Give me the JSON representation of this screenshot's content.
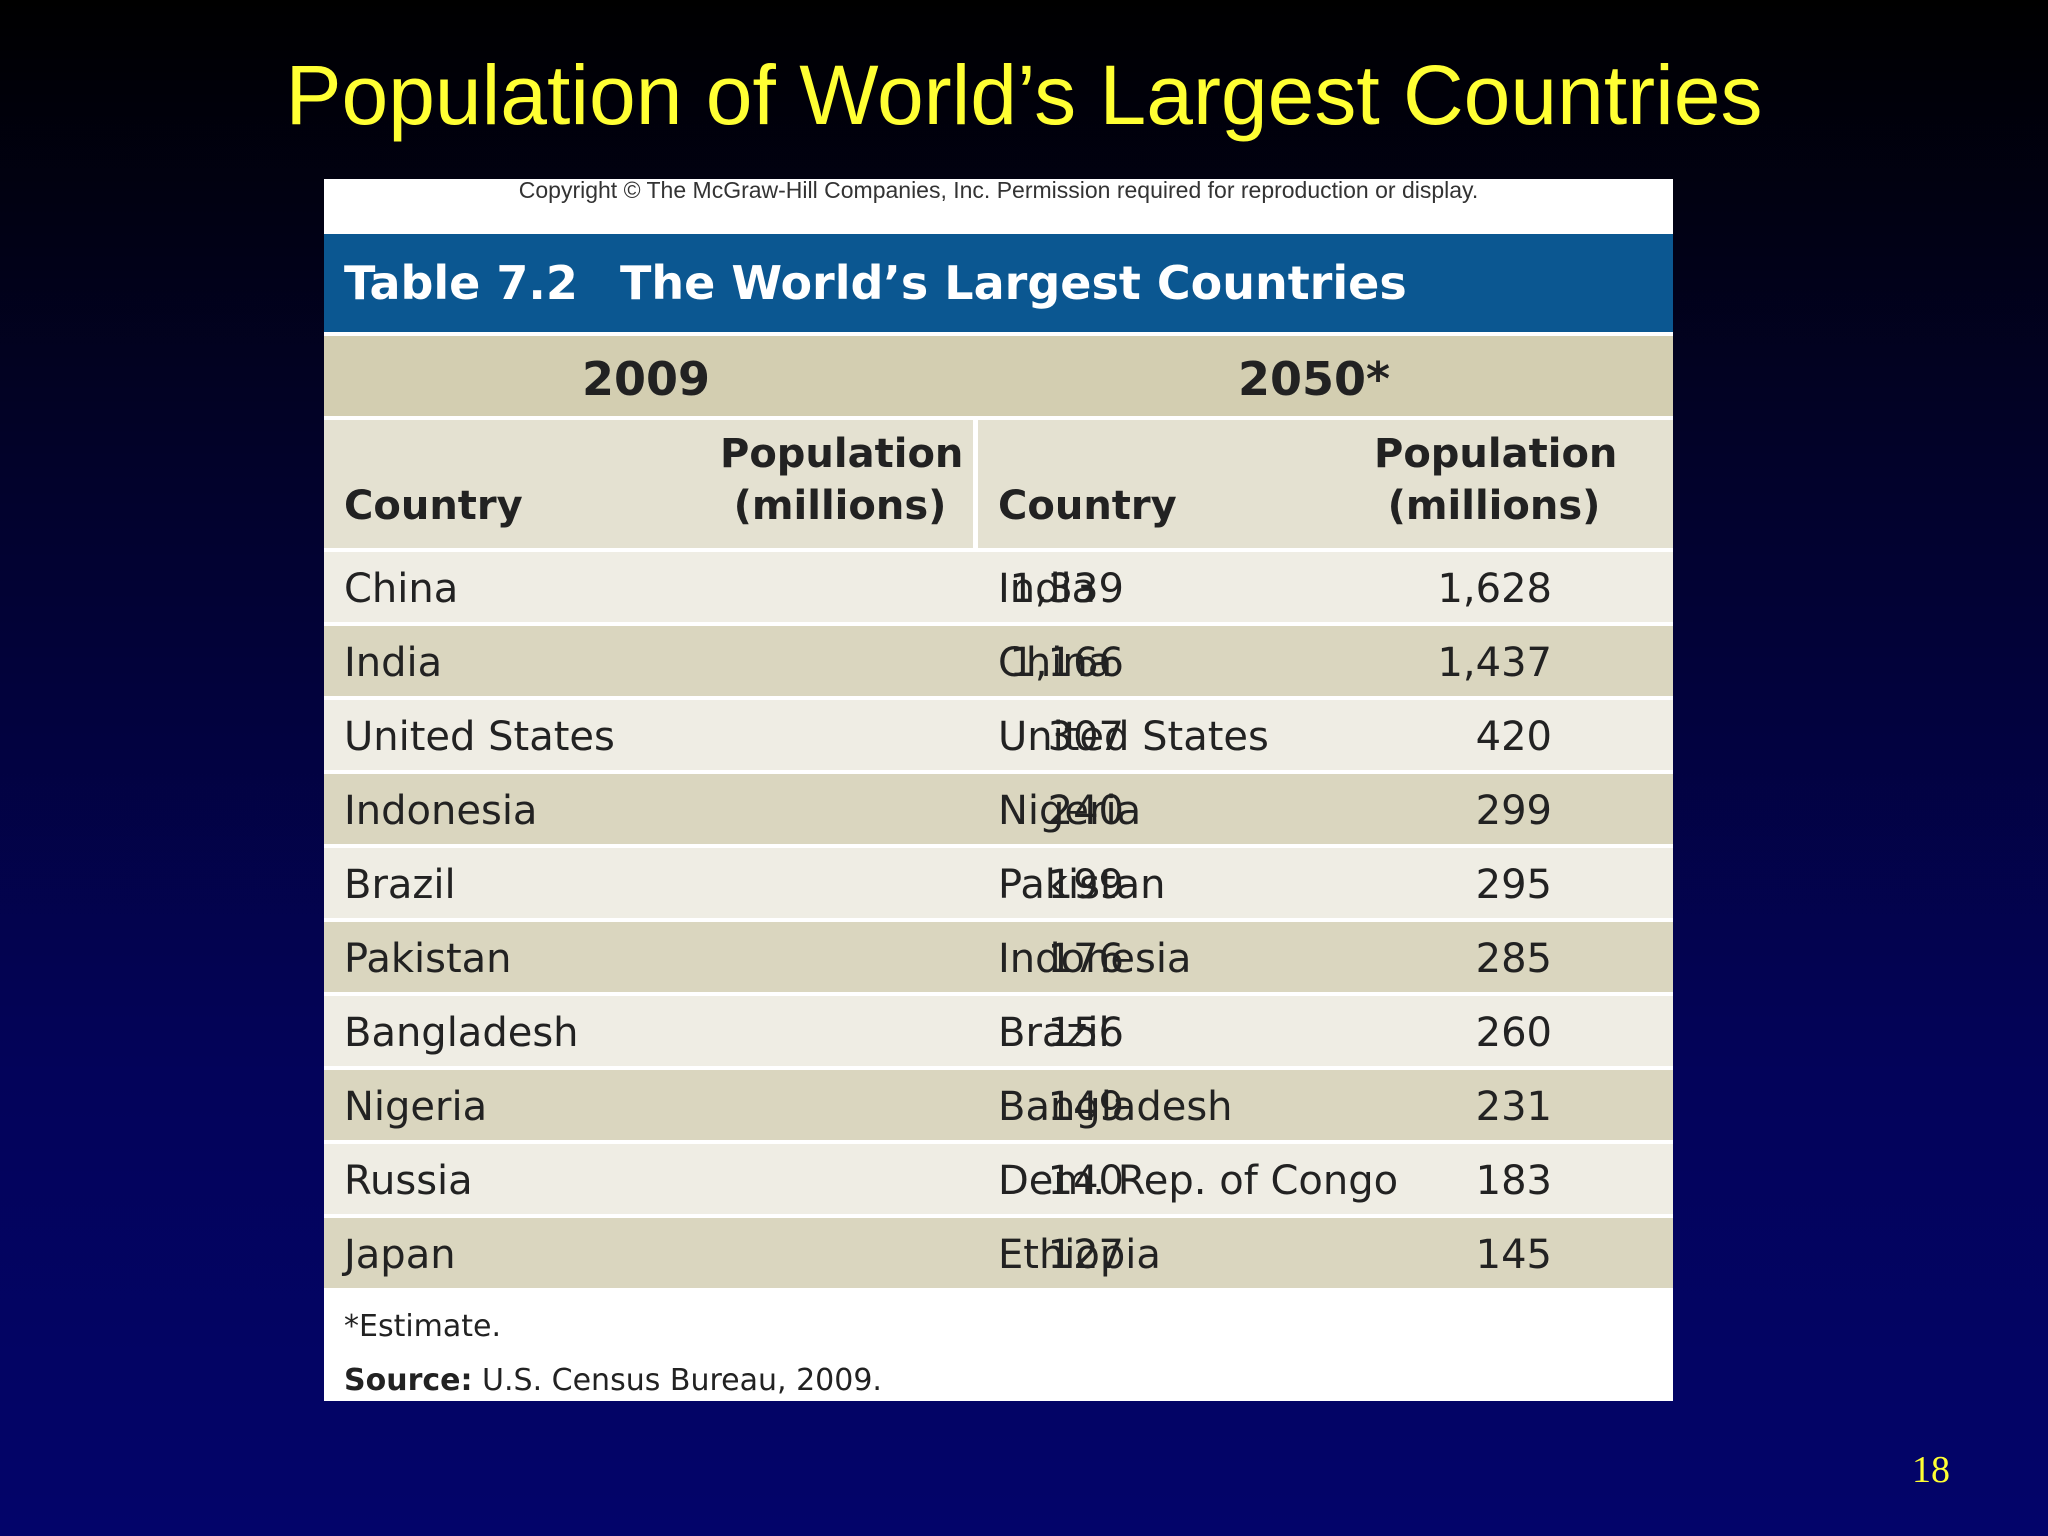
{
  "slide": {
    "title": "Population of World’s Largest Countries",
    "page_number": "18"
  },
  "figure": {
    "copyright": "Copyright © The McGraw-Hill Companies, Inc. Permission required for reproduction or display.",
    "table_number": "Table 7.2",
    "table_title": "The World’s Largest Countries",
    "year_left": "2009",
    "year_right": "2050*",
    "headers": {
      "country_left": "Country",
      "pop_left_line1": "Population",
      "pop_left_line2": "(millions)",
      "country_right": "Country",
      "pop_right_line1": "Population",
      "pop_right_line2": "(millions)"
    },
    "rows": [
      {
        "c2009": "China",
        "p2009": "1,339",
        "c2050": "India",
        "p2050": "1,628"
      },
      {
        "c2009": "India",
        "p2009": "1,166",
        "c2050": "China",
        "p2050": "1,437"
      },
      {
        "c2009": "United States",
        "p2009": "307",
        "c2050": "United States",
        "p2050": "420"
      },
      {
        "c2009": "Indonesia",
        "p2009": "240",
        "c2050": "Nigeria",
        "p2050": "299"
      },
      {
        "c2009": "Brazil",
        "p2009": "199",
        "c2050": "Pakistan",
        "p2050": "295"
      },
      {
        "c2009": "Pakistan",
        "p2009": "176",
        "c2050": "Indonesia",
        "p2050": "285"
      },
      {
        "c2009": "Bangladesh",
        "p2009": "156",
        "c2050": "Brazil",
        "p2050": "260"
      },
      {
        "c2009": "Nigeria",
        "p2009": "149",
        "c2050": "Bangladesh",
        "p2050": "231"
      },
      {
        "c2009": "Russia",
        "p2009": "140",
        "c2050": "Dem. Rep. of Congo",
        "p2050": "183"
      },
      {
        "c2009": "Japan",
        "p2009": "127",
        "c2050": "Ethiopia",
        "p2050": "145"
      }
    ],
    "footnote": "*Estimate.",
    "source_label": "Source:",
    "source_text": " U.S. Census Bureau, 2009."
  },
  "colors": {
    "title_yellow": "#ffff33",
    "table_header_blue": "#0b5791",
    "year_band": "#d3ceb1",
    "row_light": "#efede4",
    "row_dark": "#dad6bf"
  }
}
